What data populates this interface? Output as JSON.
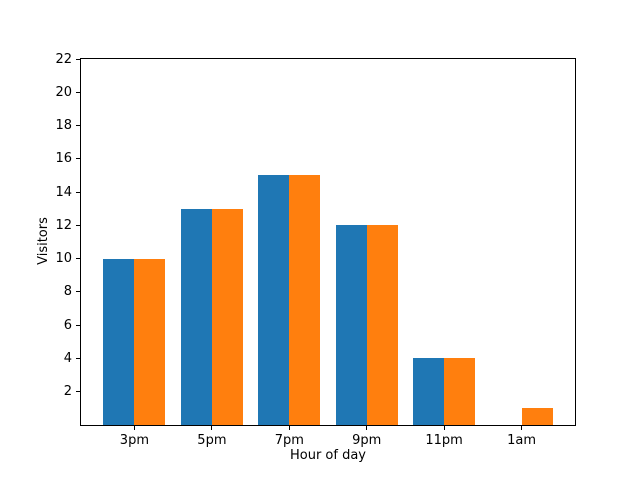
{
  "chart_data": {
    "type": "bar",
    "title": "",
    "xlabel": "Hour of day",
    "ylabel": "Visitors",
    "categories": [
      "3pm",
      "5pm",
      "7pm",
      "9pm",
      "11pm",
      "1am"
    ],
    "series": [
      {
        "name": "blue",
        "color": "#1f77b4",
        "values": [
          10,
          13,
          15,
          12,
          4,
          0
        ]
      },
      {
        "name": "orange",
        "color": "#ff7f0e",
        "values": [
          10,
          13,
          15,
          12,
          4,
          1
        ]
      }
    ],
    "ylim": [
      0,
      22
    ],
    "yticks": [
      2,
      4,
      6,
      8,
      10,
      12,
      14,
      16,
      18,
      20,
      22
    ],
    "xlim": [
      -0.69,
      5.69
    ],
    "bar_width": 0.4,
    "grid": false,
    "legend": false
  }
}
